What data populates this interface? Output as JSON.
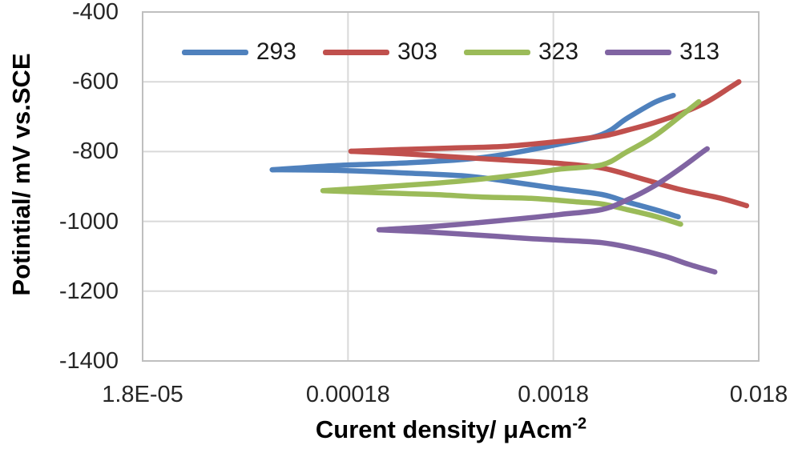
{
  "chart_data": {
    "type": "line",
    "subtype": "tafel-polarization-curves",
    "title": "",
    "x_axis": {
      "title_main": "Curent density/ μAcm",
      "title_sup": "-2",
      "scale": "log",
      "min": 1.8e-05,
      "max": 0.018,
      "ticks": [
        {
          "label": "1.8E-05",
          "value": 1.8e-05
        },
        {
          "label": "0.00018",
          "value": 0.00018
        },
        {
          "label": "0.0018",
          "value": 0.0018
        },
        {
          "label": "0.018",
          "value": 0.018
        }
      ]
    },
    "y_axis": {
      "title": "Potintial/ mV vs.SCE",
      "unit": "mV",
      "max": -400,
      "min": -1400,
      "ticks": [
        {
          "label": "-400",
          "value": -400
        },
        {
          "label": "-600",
          "value": -600
        },
        {
          "label": "-800",
          "value": -800
        },
        {
          "label": "-1000",
          "value": -1000
        },
        {
          "label": "-1200",
          "value": -1200
        },
        {
          "label": "-1400",
          "value": -1400
        }
      ]
    },
    "grid": true,
    "legend_position": "top-center-inside",
    "colors": {
      "gridline": "#D9D9D9",
      "border": "#BFBFBF",
      "tick_text": "#262626",
      "title_text": "#000000"
    },
    "series": [
      {
        "name": "293",
        "color": "#4F81BD",
        "ecorr_mV": -852,
        "branches": {
          "anodic": [
            [
              7.7e-05,
              -852
            ],
            [
              0.00016,
              -840
            ],
            [
              0.00033,
              -833
            ],
            [
              0.00067,
              -822
            ],
            [
              0.00104,
              -808
            ],
            [
              0.00184,
              -781
            ],
            [
              0.0031,
              -751
            ],
            [
              0.0041,
              -705
            ],
            [
              0.0056,
              -659
            ],
            [
              0.0069,
              -639
            ]
          ],
          "cathodic": [
            [
              7.7e-05,
              -852
            ],
            [
              0.00016,
              -854
            ],
            [
              0.00033,
              -861
            ],
            [
              0.00067,
              -870
            ],
            [
              0.00104,
              -884
            ],
            [
              0.00184,
              -905
            ],
            [
              0.0031,
              -923
            ],
            [
              0.0041,
              -944
            ],
            [
              0.0056,
              -966
            ],
            [
              0.0073,
              -987
            ]
          ]
        }
      },
      {
        "name": "303",
        "color": "#C0504D",
        "ecorr_mV": -799,
        "branches": {
          "anodic": [
            [
              0.000186,
              -799
            ],
            [
              0.00033,
              -794
            ],
            [
              0.00057,
              -790
            ],
            [
              0.00104,
              -785
            ],
            [
              0.00184,
              -772
            ],
            [
              0.0031,
              -756
            ],
            [
              0.0041,
              -739
            ],
            [
              0.0056,
              -717
            ],
            [
              0.0075,
              -691
            ],
            [
              0.0101,
              -657
            ],
            [
              0.0129,
              -618
            ],
            [
              0.0144,
              -600
            ]
          ],
          "cathodic": [
            [
              0.000186,
              -799
            ],
            [
              0.00033,
              -806
            ],
            [
              0.00057,
              -815
            ],
            [
              0.00104,
              -824
            ],
            [
              0.00184,
              -833
            ],
            [
              0.0031,
              -847
            ],
            [
              0.0048,
              -877
            ],
            [
              0.0075,
              -909
            ],
            [
              0.0118,
              -934
            ],
            [
              0.0157,
              -955
            ]
          ]
        }
      },
      {
        "name": "323",
        "color": "#9BBB59",
        "ecorr_mV": -912,
        "branches": {
          "anodic": [
            [
              0.000136,
              -912
            ],
            [
              0.00025,
              -902
            ],
            [
              0.00047,
              -891
            ],
            [
              0.0008,
              -879
            ],
            [
              0.00137,
              -863
            ],
            [
              0.00196,
              -850
            ],
            [
              0.0031,
              -838
            ],
            [
              0.0041,
              -801
            ],
            [
              0.0056,
              -755
            ],
            [
              0.0075,
              -698
            ],
            [
              0.0092,
              -657
            ]
          ],
          "cathodic": [
            [
              0.000136,
              -912
            ],
            [
              0.00025,
              -918
            ],
            [
              0.00047,
              -923
            ],
            [
              0.0008,
              -930
            ],
            [
              0.0014,
              -934
            ],
            [
              0.00234,
              -944
            ],
            [
              0.0031,
              -950
            ],
            [
              0.0041,
              -966
            ],
            [
              0.0056,
              -985
            ],
            [
              0.0075,
              -1008
            ]
          ]
        }
      },
      {
        "name": "313",
        "color": "#8064A2",
        "ecorr_mV": -1024,
        "branches": {
          "anodic": [
            [
              0.000255,
              -1024
            ],
            [
              0.00046,
              -1015
            ],
            [
              0.0008,
              -1003
            ],
            [
              0.00136,
              -990
            ],
            [
              0.00196,
              -980
            ],
            [
              0.0031,
              -966
            ],
            [
              0.0041,
              -939
            ],
            [
              0.0056,
              -898
            ],
            [
              0.0075,
              -848
            ],
            [
              0.0096,
              -801
            ],
            [
              0.0101,
              -792
            ]
          ],
          "cathodic": [
            [
              0.000255,
              -1024
            ],
            [
              0.00046,
              -1031
            ],
            [
              0.0008,
              -1040
            ],
            [
              0.00136,
              -1049
            ],
            [
              0.00196,
              -1054
            ],
            [
              0.0031,
              -1061
            ],
            [
              0.0044,
              -1077
            ],
            [
              0.0063,
              -1100
            ],
            [
              0.0082,
              -1123
            ],
            [
              0.011,
              -1145
            ]
          ]
        }
      }
    ]
  }
}
